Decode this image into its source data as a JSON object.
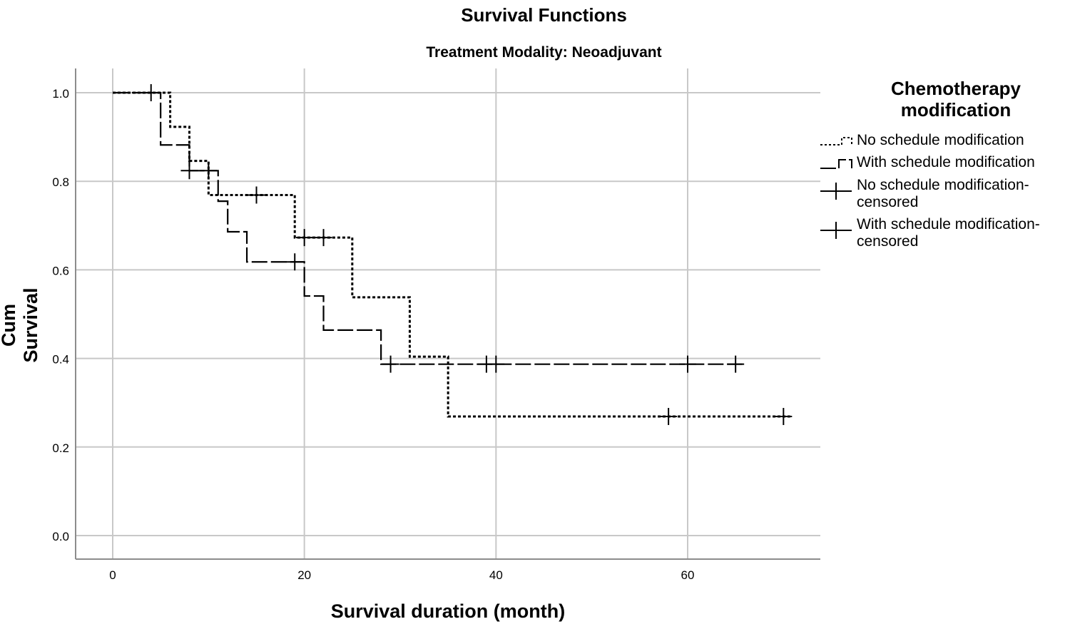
{
  "chart_data": {
    "type": "line",
    "subtype": "kaplan-meier step",
    "title": "Survival Functions",
    "subtitle": "Treatment Modality: Neoadjuvant",
    "xlabel": "Survival duration (month)",
    "ylabel": "Cum Survival",
    "xlim": [
      -4,
      74
    ],
    "ylim": [
      -0.055,
      1.055
    ],
    "x_ticks": [
      0,
      20,
      40,
      60
    ],
    "x_tick_labels": [
      "0",
      "20",
      "40",
      "60"
    ],
    "y_ticks": [
      0.0,
      0.2,
      0.4,
      0.6,
      0.8,
      1.0
    ],
    "y_tick_labels": [
      "0.0",
      "0.2",
      "0.4",
      "0.6",
      "0.8",
      "1.0"
    ],
    "grid": true,
    "legend_placement": "right",
    "legend_title": "Chemotherapy modification",
    "legend_title_lines": [
      "Chemotherapy",
      "modification"
    ],
    "legend_entries": [
      "No schedule modification",
      "With schedule modification",
      "No schedule modification-\ncensored",
      "With schedule modification-\ncensored"
    ],
    "series": [
      {
        "name": "No schedule modification",
        "style": "dotted",
        "steps": [
          [
            0,
            1.0
          ],
          [
            6,
            0.923
          ],
          [
            8,
            0.846
          ],
          [
            10,
            0.769
          ],
          [
            19,
            0.673
          ],
          [
            25,
            0.538
          ],
          [
            31,
            0.404
          ],
          [
            35,
            0.269
          ]
        ],
        "end_x": 70.7,
        "censored": [
          [
            15,
            0.769
          ],
          [
            20,
            0.673
          ],
          [
            22,
            0.673
          ],
          [
            58,
            0.269
          ],
          [
            70,
            0.269
          ]
        ]
      },
      {
        "name": "With schedule modification",
        "style": "dashed",
        "steps": [
          [
            0,
            1.0
          ],
          [
            5,
            0.882
          ],
          [
            8,
            0.824
          ],
          [
            11,
            0.755
          ],
          [
            12,
            0.686
          ],
          [
            14,
            0.618
          ],
          [
            20,
            0.541
          ],
          [
            22,
            0.464
          ],
          [
            28,
            0.387
          ]
        ],
        "end_x": 65.7,
        "censored": [
          [
            4,
            1.0
          ],
          [
            8,
            0.824
          ],
          [
            10,
            0.824
          ],
          [
            19,
            0.618
          ],
          [
            29,
            0.387
          ],
          [
            39,
            0.387
          ],
          [
            40,
            0.387
          ],
          [
            60,
            0.387
          ],
          [
            65,
            0.387
          ]
        ]
      }
    ]
  },
  "colors": {
    "line": "#000000",
    "grid": "#c8c8c8",
    "axis": "#8c8c8c"
  }
}
